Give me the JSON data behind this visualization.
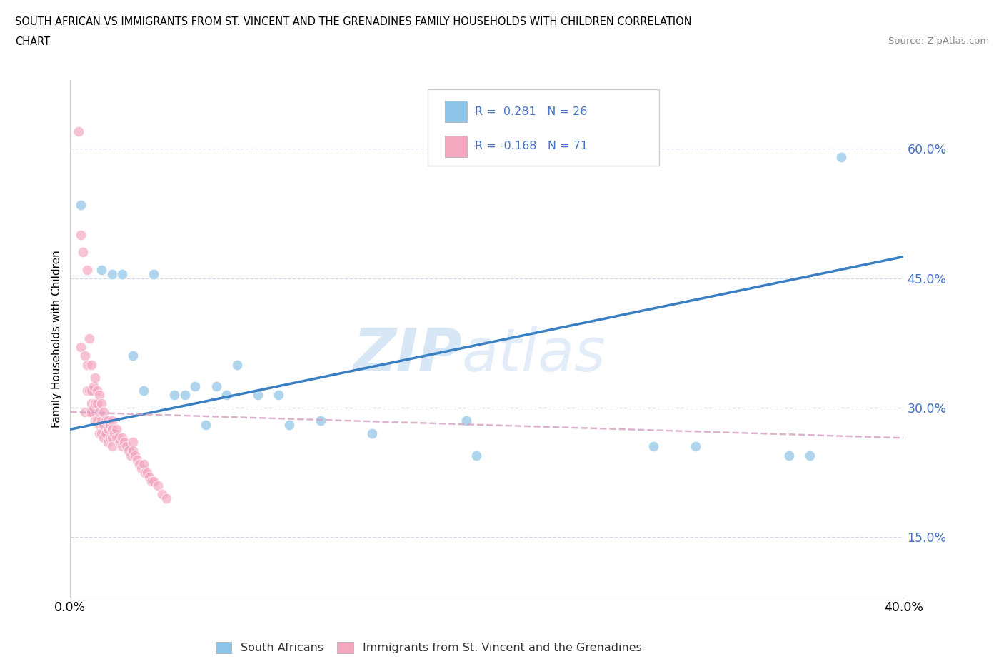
{
  "title_line1": "SOUTH AFRICAN VS IMMIGRANTS FROM ST. VINCENT AND THE GRENADINES FAMILY HOUSEHOLDS WITH CHILDREN CORRELATION",
  "title_line2": "CHART",
  "source": "Source: ZipAtlas.com",
  "ylabel": "Family Households with Children",
  "xlim": [
    0.0,
    0.4
  ],
  "ylim": [
    0.08,
    0.68
  ],
  "yticks": [
    0.15,
    0.3,
    0.45,
    0.6
  ],
  "ytick_labels": [
    "15.0%",
    "30.0%",
    "45.0%",
    "60.0%"
  ],
  "xticks": [
    0.0,
    0.1,
    0.2,
    0.3,
    0.4
  ],
  "xtick_labels": [
    "0.0%",
    "",
    "",
    "",
    "40.0%"
  ],
  "watermark_zip": "ZIP",
  "watermark_atlas": "atlas",
  "legend_text1": "R =  0.281   N = 26",
  "legend_text2": "R = -0.168   N = 71",
  "blue_color": "#8ec4e8",
  "pink_color": "#f4a8c0",
  "line_blue_color": "#3a7fc1",
  "line_pink_color": "#e08ab0",
  "legend_blue": "#5b9bd5",
  "tick_color": "#4472c4",
  "sa_x": [
    0.005,
    0.015,
    0.02,
    0.025,
    0.03,
    0.035,
    0.04,
    0.05,
    0.055,
    0.06,
    0.065,
    0.07,
    0.075,
    0.08,
    0.09,
    0.1,
    0.105,
    0.12,
    0.145,
    0.19,
    0.195,
    0.28,
    0.3,
    0.345,
    0.355,
    0.37
  ],
  "sa_y": [
    0.535,
    0.46,
    0.455,
    0.455,
    0.36,
    0.32,
    0.455,
    0.315,
    0.315,
    0.325,
    0.28,
    0.325,
    0.315,
    0.35,
    0.315,
    0.315,
    0.28,
    0.285,
    0.27,
    0.285,
    0.245,
    0.255,
    0.255,
    0.245,
    0.245,
    0.59
  ],
  "svg_x": [
    0.004,
    0.005,
    0.005,
    0.006,
    0.007,
    0.007,
    0.008,
    0.008,
    0.008,
    0.009,
    0.009,
    0.009,
    0.01,
    0.01,
    0.01,
    0.01,
    0.011,
    0.011,
    0.012,
    0.012,
    0.012,
    0.013,
    0.013,
    0.013,
    0.014,
    0.014,
    0.014,
    0.014,
    0.015,
    0.015,
    0.015,
    0.016,
    0.016,
    0.016,
    0.017,
    0.017,
    0.018,
    0.018,
    0.018,
    0.019,
    0.019,
    0.02,
    0.02,
    0.02,
    0.02,
    0.021,
    0.022,
    0.022,
    0.023,
    0.024,
    0.025,
    0.025,
    0.026,
    0.027,
    0.028,
    0.029,
    0.03,
    0.03,
    0.031,
    0.032,
    0.033,
    0.034,
    0.035,
    0.036,
    0.037,
    0.038,
    0.039,
    0.04,
    0.042,
    0.044,
    0.046
  ],
  "svg_y": [
    0.62,
    0.5,
    0.37,
    0.48,
    0.36,
    0.295,
    0.46,
    0.35,
    0.32,
    0.38,
    0.32,
    0.295,
    0.35,
    0.32,
    0.305,
    0.295,
    0.325,
    0.3,
    0.335,
    0.305,
    0.285,
    0.32,
    0.305,
    0.285,
    0.315,
    0.295,
    0.28,
    0.27,
    0.305,
    0.285,
    0.27,
    0.295,
    0.28,
    0.265,
    0.285,
    0.27,
    0.285,
    0.275,
    0.26,
    0.28,
    0.265,
    0.285,
    0.275,
    0.265,
    0.255,
    0.27,
    0.275,
    0.265,
    0.265,
    0.26,
    0.265,
    0.255,
    0.26,
    0.255,
    0.25,
    0.245,
    0.26,
    0.25,
    0.245,
    0.24,
    0.235,
    0.23,
    0.235,
    0.225,
    0.225,
    0.22,
    0.215,
    0.215,
    0.21,
    0.2,
    0.195
  ]
}
